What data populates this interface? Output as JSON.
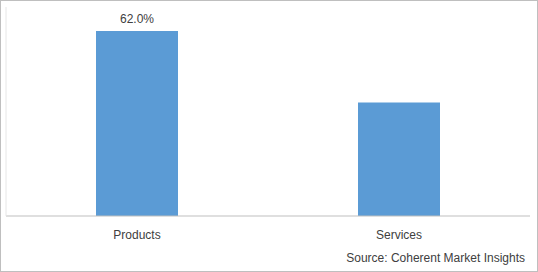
{
  "chart_data": {
    "type": "bar",
    "categories": [
      "Products",
      "Services"
    ],
    "values": [
      62.0,
      38.0
    ],
    "value_labels": [
      "62.0%",
      null
    ],
    "data_labels": true,
    "color": "#5b9bd5",
    "ylim": [
      0,
      70
    ],
    "tick_labels": "x",
    "grid": false,
    "source": "Source: Coherent Market Insights"
  }
}
